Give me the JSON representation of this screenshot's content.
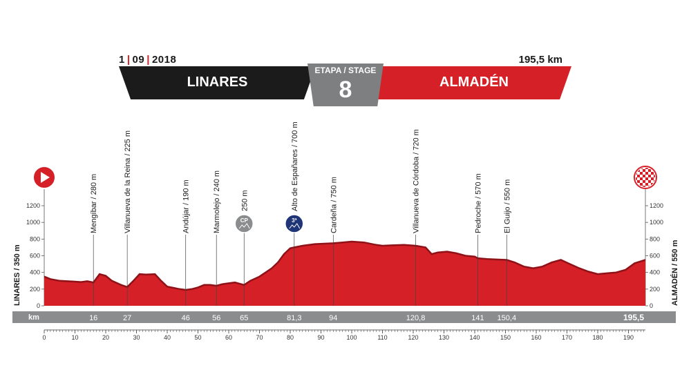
{
  "header": {
    "date": {
      "day": "1",
      "month": "09",
      "year": "2018"
    },
    "distance": "195,5 km",
    "start": "LINARES",
    "finish": "ALMADÉN",
    "stage_label": "ETAPA / STAGE",
    "stage_number": "8"
  },
  "colors": {
    "profile": "#d62027",
    "profile_dark": "#8e1217",
    "banner_dark": "#1b1b1b",
    "banner_red": "#d62027",
    "stage_grey": "#7d7f80",
    "km_bar": "#8a8c8d",
    "climb_badge": "#1f3577",
    "sprint_badge": "#8a8c8d"
  },
  "chart_data": {
    "type": "area",
    "xlabel": "km",
    "xlim": [
      0,
      195.5
    ],
    "ylim": [
      0,
      1300
    ],
    "yticks": [
      0,
      200,
      400,
      600,
      800,
      1000,
      1200
    ],
    "xticks": [
      0,
      10,
      20,
      30,
      40,
      50,
      60,
      70,
      80,
      90,
      100,
      110,
      120,
      130,
      140,
      150,
      160,
      170,
      180,
      190
    ],
    "left_label": "LINARES / 350 m",
    "right_label": "ALMADÉN / 550 m",
    "km_bar_label": "km",
    "km_markers": [
      "16",
      "27",
      "46",
      "56",
      "65",
      "81,3",
      "94",
      "120,8",
      "141",
      "150,4",
      "195,5"
    ],
    "profile": {
      "km": [
        0,
        2,
        5,
        10,
        12,
        14,
        16,
        18,
        20,
        22,
        25,
        27,
        29,
        31,
        33,
        36,
        38,
        40,
        42,
        44,
        46,
        48,
        50,
        52,
        54,
        56,
        58,
        60,
        62,
        65,
        67,
        70,
        72,
        74,
        76,
        78,
        80,
        81.3,
        84,
        88,
        91,
        94,
        97,
        100,
        104,
        108,
        110,
        113,
        117,
        120.8,
        124,
        126,
        128,
        131,
        134,
        137,
        140,
        141,
        144,
        147,
        150.4,
        153,
        156,
        159,
        162,
        165,
        168,
        171,
        174,
        177,
        180,
        183,
        186,
        189,
        192,
        195.5
      ],
      "alt": [
        350,
        320,
        300,
        290,
        285,
        295,
        280,
        380,
        360,
        300,
        250,
        225,
        300,
        380,
        375,
        380,
        300,
        230,
        215,
        200,
        190,
        200,
        220,
        250,
        250,
        240,
        260,
        270,
        280,
        250,
        300,
        350,
        400,
        450,
        520,
        620,
        690,
        700,
        720,
        740,
        745,
        750,
        760,
        770,
        760,
        730,
        720,
        725,
        730,
        720,
        700,
        620,
        640,
        650,
        630,
        600,
        590,
        570,
        560,
        555,
        550,
        520,
        470,
        450,
        470,
        520,
        550,
        500,
        450,
        410,
        380,
        390,
        400,
        430,
        510,
        550
      ]
    },
    "annotations": [
      {
        "label": "Mengíbar / 280 m",
        "km": 16
      },
      {
        "label": "Villanueva de la Reina / 225 m",
        "km": 27
      },
      {
        "label": "Andújar / 190 m",
        "km": 46
      },
      {
        "label": "Marmolejo / 240 m",
        "km": 56
      },
      {
        "label": "250 m",
        "km": 65,
        "badge": "sprint",
        "badge_text": "CP"
      },
      {
        "label": "Alto de Españares / 700 m",
        "km": 81.3,
        "badge": "climb",
        "badge_text": "3ª"
      },
      {
        "label": "Cardeña / 750 m",
        "km": 94
      },
      {
        "label": "Villanueva de Córdoba / 720 m",
        "km": 120.8
      },
      {
        "label": "Pedroche / 570 m",
        "km": 141
      },
      {
        "label": "El Guijo / 550 m",
        "km": 150.4
      }
    ]
  }
}
